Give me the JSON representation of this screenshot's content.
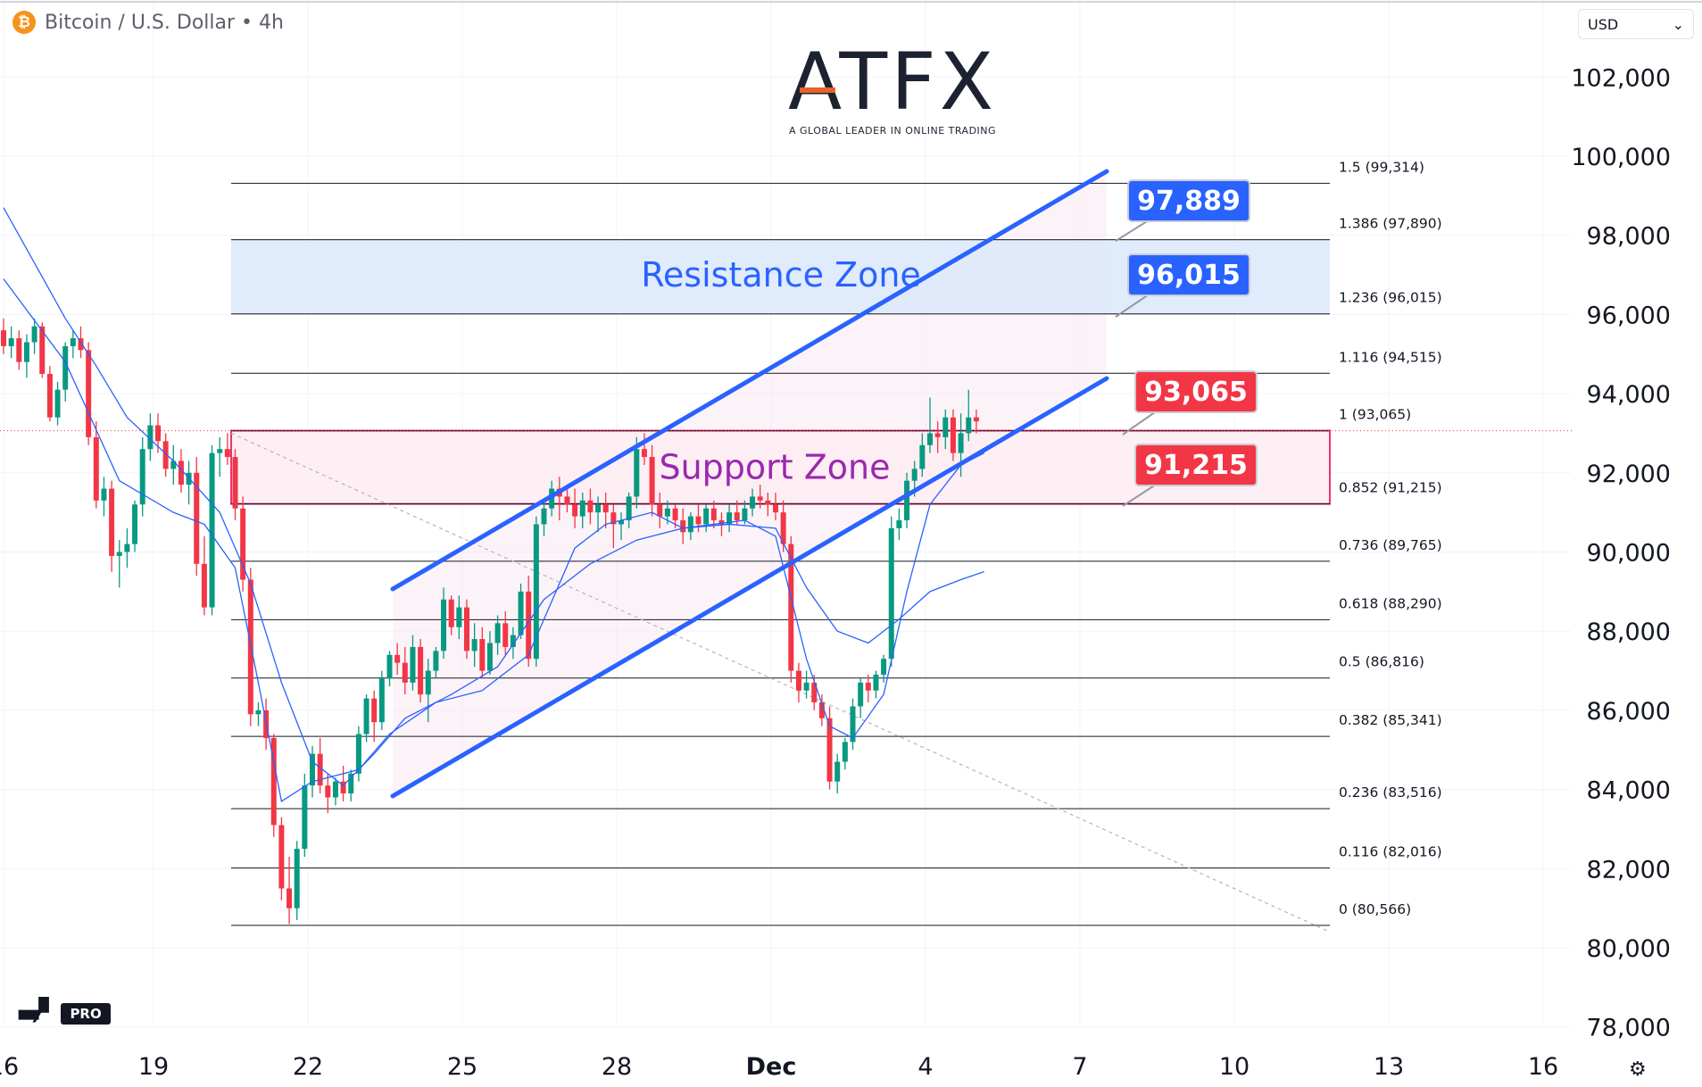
{
  "header": {
    "symbol_icon": "bitcoin-icon",
    "symbol_icon_glyph": "₿",
    "title": "Bitcoin / U.S. Dollar • 4h"
  },
  "currency_selector": {
    "value": "USD",
    "icon": "chevron-down-icon"
  },
  "logo": {
    "name": "ATFX",
    "tagline": "A GLOBAL LEADER IN ONLINE TRADING"
  },
  "watermark": {
    "brand": "TradingView",
    "badge": "PRO"
  },
  "settings_icon": "gear-icon",
  "chart_data": {
    "type": "candlestick",
    "y_axis": {
      "ticks": [
        78000,
        80000,
        82000,
        84000,
        86000,
        88000,
        90000,
        92000,
        94000,
        96000,
        98000,
        100000,
        102000
      ],
      "range": [
        77400,
        103000
      ]
    },
    "x_axis": {
      "ticks": [
        "16",
        "19",
        "22",
        "25",
        "28",
        "Dec",
        "4",
        "7",
        "10",
        "13",
        "16"
      ]
    },
    "colors": {
      "up": "#089981",
      "down": "#f23645",
      "ma_line": "#2962ff",
      "channel": "#2962ff",
      "fib_line": "#131722",
      "resistance_fill": "#dbe7fb",
      "support_fill": "#fdeef3",
      "support_border": "#e91e63"
    },
    "candles": [
      [
        95600,
        95900,
        95000,
        95200
      ],
      [
        95200,
        95700,
        94900,
        95400
      ],
      [
        95400,
        95600,
        94600,
        94800
      ],
      [
        94800,
        95500,
        94400,
        95300
      ],
      [
        95300,
        95900,
        95000,
        95700
      ],
      [
        95700,
        95800,
        94400,
        94500
      ],
      [
        94500,
        94700,
        93300,
        93400
      ],
      [
        93400,
        94300,
        93200,
        94100
      ],
      [
        94100,
        95300,
        93800,
        95200
      ],
      [
        95200,
        95600,
        94900,
        95400
      ],
      [
        95400,
        95700,
        94900,
        95100
      ],
      [
        95100,
        95300,
        92700,
        92900
      ],
      [
        92900,
        93300,
        91100,
        91300
      ],
      [
        91300,
        91900,
        90900,
        91600
      ],
      [
        91600,
        91800,
        89500,
        89900
      ],
      [
        89900,
        90300,
        89100,
        90000
      ],
      [
        90000,
        90600,
        89600,
        90200
      ],
      [
        90200,
        91300,
        90000,
        91200
      ],
      [
        91200,
        92900,
        90900,
        92600
      ],
      [
        92600,
        93500,
        92300,
        93200
      ],
      [
        93200,
        93500,
        92500,
        92800
      ],
      [
        92800,
        93000,
        91900,
        92100
      ],
      [
        92100,
        92700,
        91700,
        92300
      ],
      [
        92300,
        92600,
        91500,
        91700
      ],
      [
        91700,
        92300,
        91200,
        92000
      ],
      [
        92000,
        92400,
        89400,
        89700
      ],
      [
        89700,
        90400,
        88400,
        88600
      ],
      [
        88600,
        92700,
        88400,
        92500
      ],
      [
        92500,
        92900,
        91900,
        92600
      ],
      [
        92600,
        93000,
        92200,
        92400
      ],
      [
        92400,
        92600,
        90800,
        91100
      ],
      [
        91100,
        91400,
        89000,
        89300
      ],
      [
        89300,
        89600,
        85600,
        85900
      ],
      [
        85900,
        86200,
        85600,
        86000
      ],
      [
        86000,
        86300,
        85000,
        85300
      ],
      [
        85300,
        85400,
        82800,
        83100
      ],
      [
        83100,
        83300,
        81200,
        81500
      ],
      [
        81500,
        82300,
        80600,
        81000
      ],
      [
        81000,
        82700,
        80700,
        82500
      ],
      [
        82500,
        84400,
        82300,
        84100
      ],
      [
        84100,
        85100,
        83800,
        84900
      ],
      [
        84900,
        85300,
        83900,
        84100
      ],
      [
        84100,
        84400,
        83400,
        83800
      ],
      [
        83800,
        84300,
        83600,
        84200
      ],
      [
        84200,
        84600,
        83700,
        83900
      ],
      [
        83900,
        84500,
        83700,
        84400
      ],
      [
        84400,
        85600,
        84200,
        85400
      ],
      [
        85400,
        86400,
        85200,
        86300
      ],
      [
        86300,
        86500,
        85200,
        85700
      ],
      [
        85700,
        87000,
        85500,
        86800
      ],
      [
        86800,
        87500,
        86600,
        87400
      ],
      [
        87400,
        87700,
        86900,
        87200
      ],
      [
        87200,
        87600,
        86400,
        86700
      ],
      [
        86700,
        87900,
        86500,
        87600
      ],
      [
        87600,
        87800,
        86200,
        86400
      ],
      [
        86400,
        87300,
        85700,
        87000
      ],
      [
        87000,
        87600,
        86800,
        87500
      ],
      [
        87500,
        89100,
        87300,
        88800
      ],
      [
        88800,
        88900,
        87900,
        88100
      ],
      [
        88100,
        88900,
        87800,
        88600
      ],
      [
        88600,
        88800,
        87300,
        87500
      ],
      [
        87500,
        88200,
        87100,
        87800
      ],
      [
        87800,
        88100,
        86800,
        87000
      ],
      [
        87000,
        88000,
        86900,
        87700
      ],
      [
        87700,
        88400,
        87400,
        88200
      ],
      [
        88200,
        88500,
        87400,
        87600
      ],
      [
        87600,
        88100,
        87300,
        87900
      ],
      [
        87900,
        89200,
        87800,
        89000
      ],
      [
        89000,
        89400,
        87100,
        87300
      ],
      [
        87300,
        90900,
        87100,
        90700
      ],
      [
        90700,
        91300,
        90400,
        91100
      ],
      [
        91100,
        91800,
        90900,
        91600
      ],
      [
        91600,
        91900,
        90800,
        91400
      ],
      [
        91400,
        91700,
        91000,
        91200
      ],
      [
        91200,
        91600,
        90600,
        90900
      ],
      [
        90900,
        91500,
        90600,
        91300
      ],
      [
        91300,
        91600,
        90700,
        91000
      ],
      [
        91000,
        91400,
        90500,
        91200
      ],
      [
        91200,
        91500,
        90600,
        91000
      ],
      [
        91000,
        91200,
        90100,
        90700
      ],
      [
        90700,
        91000,
        90300,
        90800
      ],
      [
        90800,
        91500,
        90600,
        91400
      ],
      [
        91400,
        92900,
        91100,
        92600
      ],
      [
        92600,
        93000,
        92200,
        92400
      ],
      [
        92400,
        92700,
        90900,
        91200
      ],
      [
        91200,
        91500,
        90600,
        90900
      ],
      [
        90900,
        91300,
        90700,
        91100
      ],
      [
        91100,
        91200,
        90600,
        90800
      ],
      [
        90800,
        91100,
        90200,
        90500
      ],
      [
        90500,
        91000,
        90300,
        90900
      ],
      [
        90900,
        91200,
        90500,
        90700
      ],
      [
        90700,
        91200,
        90500,
        91100
      ],
      [
        91100,
        91300,
        90600,
        90800
      ],
      [
        90800,
        91000,
        90400,
        90700
      ],
      [
        90700,
        91200,
        90500,
        91000
      ],
      [
        91000,
        91300,
        90700,
        90800
      ],
      [
        90800,
        91300,
        90700,
        91100
      ],
      [
        91100,
        91600,
        90900,
        91400
      ],
      [
        91400,
        91700,
        91100,
        91300
      ],
      [
        91300,
        91500,
        90900,
        91200
      ],
      [
        91200,
        91500,
        90800,
        91000
      ],
      [
        91000,
        91300,
        90000,
        90200
      ],
      [
        90200,
        90400,
        86700,
        87000
      ],
      [
        87000,
        87200,
        86200,
        86500
      ],
      [
        86500,
        87000,
        86300,
        86700
      ],
      [
        86700,
        86900,
        86000,
        86200
      ],
      [
        86200,
        86400,
        85600,
        85800
      ],
      [
        85800,
        86100,
        84000,
        84200
      ],
      [
        84200,
        84900,
        83900,
        84700
      ],
      [
        84700,
        85300,
        84500,
        85200
      ],
      [
        85200,
        86300,
        85000,
        86100
      ],
      [
        86100,
        86800,
        85800,
        86700
      ],
      [
        86700,
        86900,
        86200,
        86500
      ],
      [
        86500,
        87000,
        86300,
        86900
      ],
      [
        86900,
        87400,
        86700,
        87300
      ],
      [
        87300,
        90900,
        87100,
        90600
      ],
      [
        90600,
        91100,
        90300,
        90800
      ],
      [
        90800,
        92000,
        90600,
        91800
      ],
      [
        91800,
        92300,
        91400,
        92100
      ],
      [
        92100,
        93000,
        91900,
        92700
      ],
      [
        92700,
        93900,
        92500,
        93000
      ],
      [
        93000,
        93300,
        92500,
        92900
      ],
      [
        92900,
        93600,
        92600,
        93400
      ],
      [
        93400,
        93600,
        92300,
        92500
      ],
      [
        92500,
        93500,
        91900,
        93000
      ],
      [
        93000,
        94100,
        92800,
        93400
      ],
      [
        93400,
        93600,
        93000,
        93300
      ]
    ],
    "moving_averages": [
      {
        "name": "MA fast",
        "values": [
          [
            0,
            96900
          ],
          [
            8,
            94800
          ],
          [
            15,
            91800
          ],
          [
            22,
            91000
          ],
          [
            26,
            90700
          ],
          [
            30,
            89600
          ],
          [
            33,
            86700
          ],
          [
            36,
            83700
          ],
          [
            40,
            84200
          ],
          [
            46,
            84500
          ],
          [
            50,
            85400
          ],
          [
            56,
            86200
          ],
          [
            62,
            86500
          ],
          [
            68,
            87400
          ],
          [
            70,
            88300
          ],
          [
            74,
            90100
          ],
          [
            78,
            90700
          ],
          [
            84,
            91000
          ],
          [
            88,
            90600
          ],
          [
            92,
            90700
          ],
          [
            96,
            90800
          ],
          [
            100,
            90400
          ],
          [
            104,
            87300
          ],
          [
            107,
            85600
          ],
          [
            110,
            85300
          ],
          [
            114,
            86400
          ],
          [
            117,
            89000
          ],
          [
            120,
            91200
          ],
          [
            124,
            92200
          ],
          [
            127,
            92500
          ]
        ]
      },
      {
        "name": "MA slow",
        "values": [
          [
            0,
            98700
          ],
          [
            4,
            97300
          ],
          [
            8,
            95900
          ],
          [
            12,
            94700
          ],
          [
            16,
            93400
          ],
          [
            22,
            92300
          ],
          [
            28,
            91000
          ],
          [
            32,
            89200
          ],
          [
            36,
            86700
          ],
          [
            40,
            84700
          ],
          [
            44,
            84100
          ],
          [
            48,
            84900
          ],
          [
            52,
            85800
          ],
          [
            58,
            86400
          ],
          [
            64,
            87100
          ],
          [
            70,
            88800
          ],
          [
            76,
            89700
          ],
          [
            82,
            90300
          ],
          [
            88,
            90600
          ],
          [
            94,
            90700
          ],
          [
            100,
            90600
          ],
          [
            104,
            89100
          ],
          [
            108,
            88000
          ],
          [
            112,
            87700
          ],
          [
            116,
            88300
          ],
          [
            120,
            89000
          ],
          [
            124,
            89300
          ],
          [
            127,
            89500
          ]
        ]
      }
    ],
    "fibonacci": [
      {
        "ratio": "0",
        "price": 80566,
        "label": "0 (80,566)"
      },
      {
        "ratio": "0.116",
        "price": 82016,
        "label": "0.116 (82,016)"
      },
      {
        "ratio": "0.236",
        "price": 83516,
        "label": "0.236 (83,516)"
      },
      {
        "ratio": "0.382",
        "price": 85341,
        "label": "0.382 (85,341)"
      },
      {
        "ratio": "0.5",
        "price": 86816,
        "label": "0.5 (86,816)"
      },
      {
        "ratio": "0.618",
        "price": 88290,
        "label": "0.618 (88,290)"
      },
      {
        "ratio": "0.736",
        "price": 89765,
        "label": "0.736 (89,765)"
      },
      {
        "ratio": "0.852",
        "price": 91215,
        "label": "0.852 (91,215)"
      },
      {
        "ratio": "1",
        "price": 93065,
        "label": "1 (93,065)"
      },
      {
        "ratio": "1.116",
        "price": 94515,
        "label": "1.116 (94,515)"
      },
      {
        "ratio": "1.236",
        "price": 96015,
        "label": "1.236 (96,015)"
      },
      {
        "ratio": "1.386",
        "price": 97890,
        "label": "1.386 (97,890)"
      },
      {
        "ratio": "1.5",
        "price": 99314,
        "label": "1.5 (99,314)"
      }
    ],
    "zones": [
      {
        "name": "Resistance Zone",
        "from": 96015,
        "to": 97890,
        "text_color": "#2962ff"
      },
      {
        "name": "Support Zone",
        "from": 91215,
        "to": 93065,
        "text_color": "#9c27b0"
      }
    ],
    "channel": {
      "upper": {
        "start": [
          0,
          90000
        ],
        "end": [
          0,
          99600
        ]
      },
      "lower": {
        "start": [
          0,
          84000
        ],
        "end": [
          0,
          94500
        ]
      }
    },
    "callouts": [
      {
        "text": "97,889",
        "color": "#2962ff",
        "price": 97889
      },
      {
        "text": "96,015",
        "color": "#2962ff",
        "price": 96015
      },
      {
        "text": "93,065",
        "color": "#f23645",
        "price": 93065
      },
      {
        "text": "91,215",
        "color": "#f23645",
        "price": 91215
      }
    ],
    "last_price_line": 93065
  }
}
